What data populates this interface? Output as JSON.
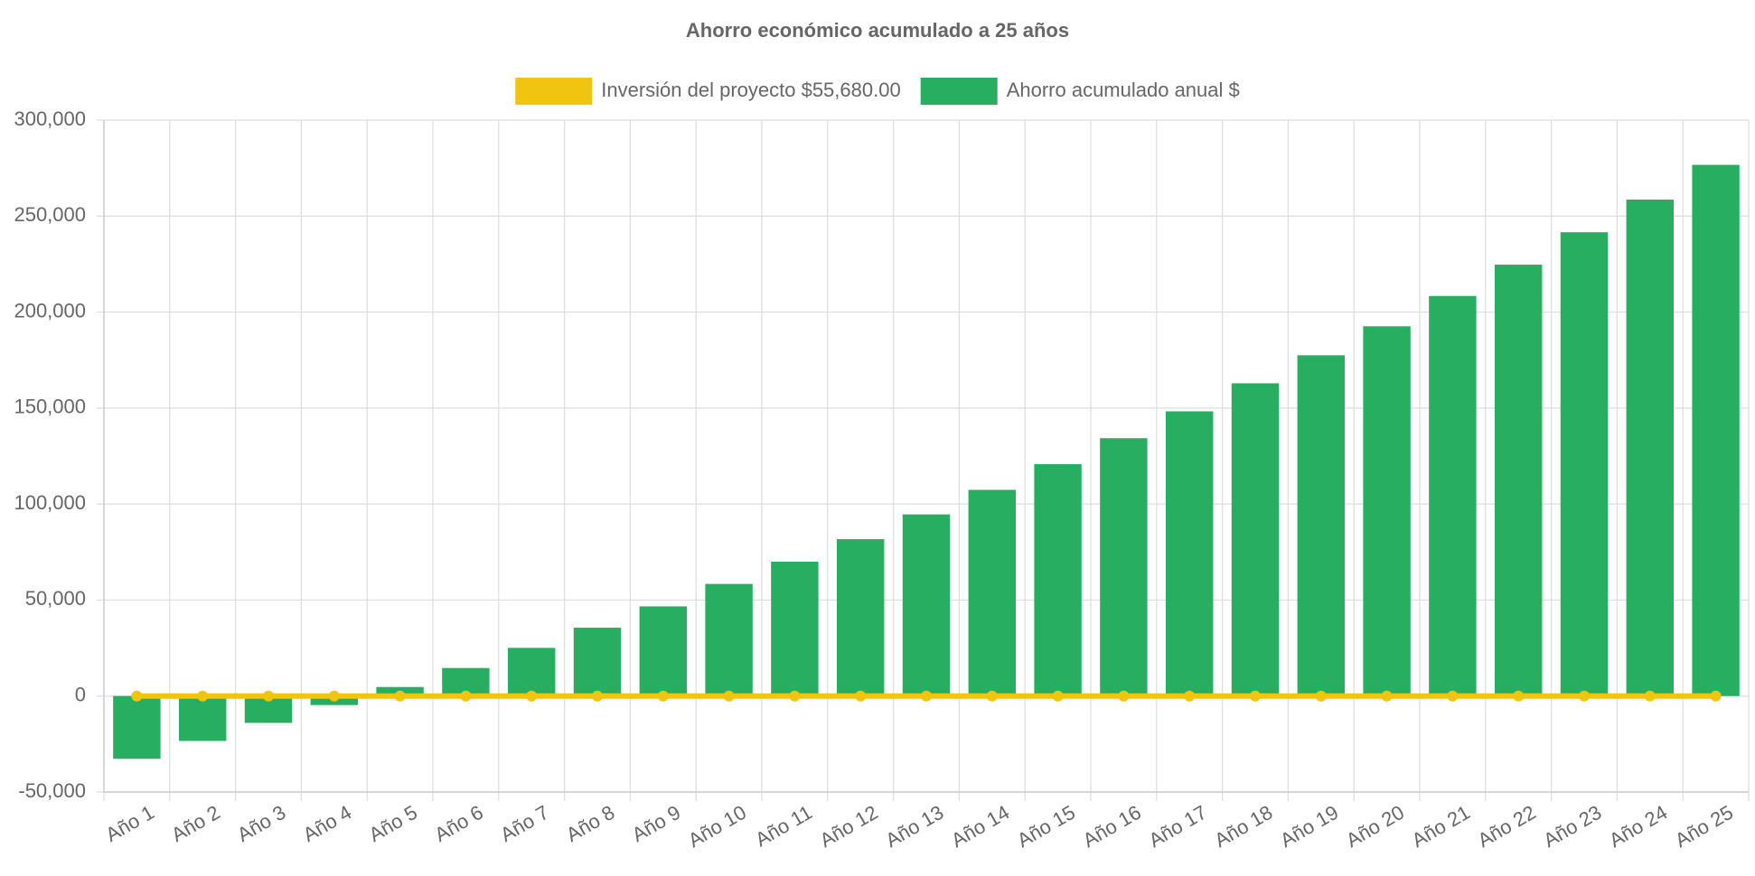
{
  "chart_data": {
    "type": "bar",
    "title": "Ahorro económico acumulado a 25 años",
    "categories": [
      "Año 1",
      "Año 2",
      "Año 3",
      "Año 4",
      "Año 5",
      "Año 6",
      "Año 7",
      "Año 8",
      "Año 9",
      "Año 10",
      "Año 11",
      "Año 12",
      "Año 13",
      "Año 14",
      "Año 15",
      "Año 16",
      "Año 17",
      "Año 18",
      "Año 19",
      "Año 20",
      "Año 21",
      "Año 22",
      "Año 23",
      "Año 24",
      "Año 25"
    ],
    "series": [
      {
        "name": "Inversión del proyecto $55,680.00",
        "color": "#f1c40f",
        "type": "line",
        "values": [
          0,
          0,
          0,
          0,
          0,
          0,
          0,
          0,
          0,
          0,
          0,
          0,
          0,
          0,
          0,
          0,
          0,
          0,
          0,
          0,
          0,
          0,
          0,
          0,
          0
        ]
      },
      {
        "name": "Ahorro acumulado anual $",
        "color": "#27ae60",
        "type": "bar",
        "values": [
          -32700,
          -23400,
          -14000,
          -4700,
          4700,
          14600,
          25100,
          35600,
          46700,
          58400,
          70000,
          81700,
          94600,
          107400,
          120800,
          134300,
          148300,
          162900,
          177500,
          192600,
          208400,
          224700,
          241600,
          258600,
          276700
        ]
      }
    ],
    "ylim": [
      -50000,
      300000
    ],
    "yticks": [
      {
        "value": -50000,
        "label": "-50,000"
      },
      0,
      {
        "value": 50000,
        "label": "50,000"
      },
      {
        "value": 100000,
        "label": "100,000"
      },
      {
        "value": 150000,
        "label": "150,000"
      },
      {
        "value": 200000,
        "label": "200,000"
      },
      {
        "value": 250000,
        "label": "250,000"
      },
      {
        "value": 300000,
        "label": "300,000"
      }
    ],
    "grid": true,
    "legend": "top"
  }
}
